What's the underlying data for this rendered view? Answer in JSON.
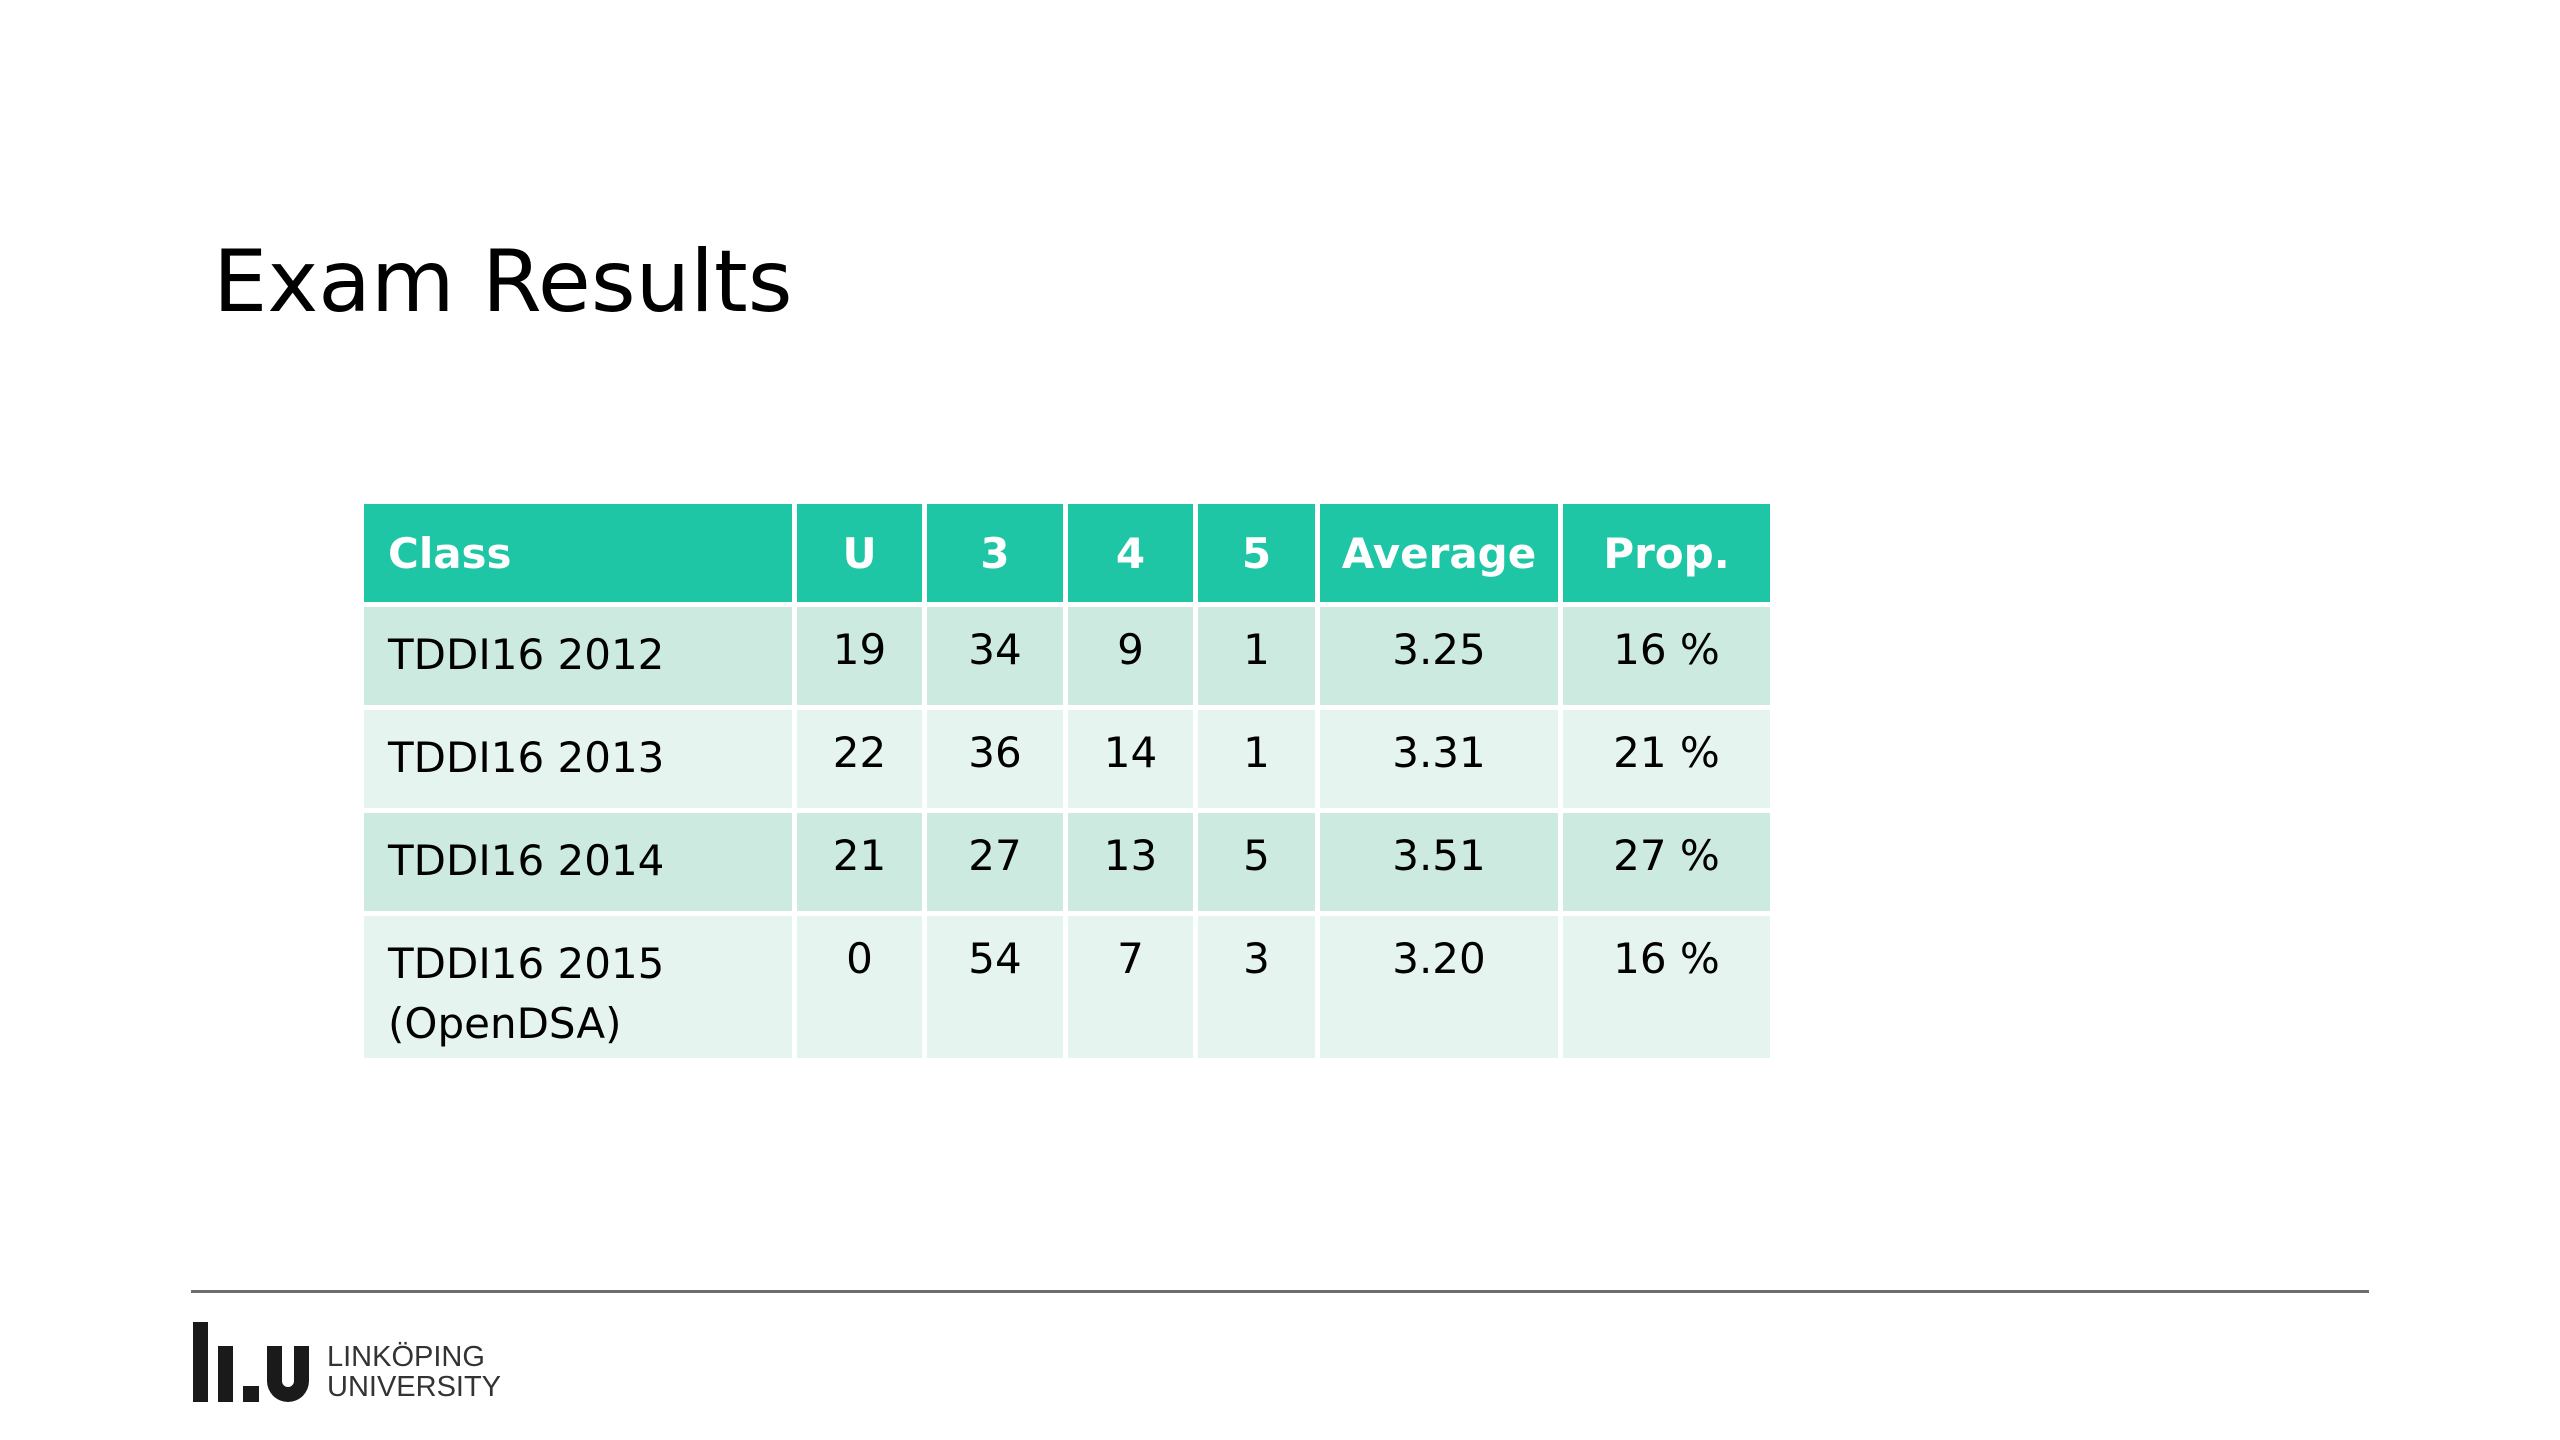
{
  "title": "Exam Results",
  "table": {
    "headers": [
      "Class",
      "U",
      "3",
      "4",
      "5",
      "Average",
      "Prop."
    ],
    "rows": [
      {
        "class_lines": [
          "TDDI16 2012"
        ],
        "u": "19",
        "g3": "34",
        "g4": "9",
        "g5": "1",
        "average": "3.25",
        "prop": "16 %"
      },
      {
        "class_lines": [
          "TDDI16 2013"
        ],
        "u": "22",
        "g3": "36",
        "g4": "14",
        "g5": "1",
        "average": "3.31",
        "prop": "21 %"
      },
      {
        "class_lines": [
          "TDDI16 2014"
        ],
        "u": "21",
        "g3": "27",
        "g4": "13",
        "g5": "5",
        "average": "3.51",
        "prop": "27 %"
      },
      {
        "class_lines": [
          "TDDI16 2015",
          "(OpenDSA)"
        ],
        "u": "0",
        "g3": "54",
        "g4": "7",
        "g5": "3",
        "average": "3.20",
        "prop": "16 %"
      }
    ]
  },
  "footer": {
    "logo_icon": "liu-logo-mark",
    "logo_line1": "LINKÖPING",
    "logo_line2": "UNIVERSITY"
  },
  "colors": {
    "header_bg": "#1fc6a6",
    "row_odd_bg": "#cceadf",
    "row_even_bg": "#e6f4ef",
    "rule": "#6d6d6d"
  }
}
